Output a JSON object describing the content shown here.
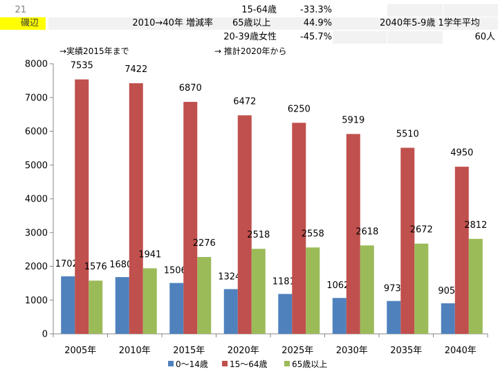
{
  "header": {
    "row_number": "21",
    "area_name": "磯辺",
    "change_label": "2010→40年 増減率",
    "rows": [
      {
        "group": "15-64歳",
        "rate": "-33.3%"
      },
      {
        "group": "65歳以上",
        "rate": "44.9%"
      },
      {
        "group": "20-39歳女性",
        "rate": "-45.7%"
      }
    ],
    "grade_label": "2040年5-9歳 1学年平均",
    "grade_value": "60人"
  },
  "notes": {
    "actual": "→実績2015年まで",
    "estimate": "→ 推計2020年から"
  },
  "colors": {
    "series_0": "#4f81bd",
    "series_1": "#c0504d",
    "series_2": "#9bbb59"
  },
  "chart_data": {
    "type": "bar",
    "categories": [
      "2005年",
      "2010年",
      "2015年",
      "2020年",
      "2025年",
      "2030年",
      "2035年",
      "2040年"
    ],
    "series": [
      {
        "name": "0～14歳",
        "values": [
          1702,
          1680,
          1506,
          1324,
          1181,
          1062,
          973,
          905
        ]
      },
      {
        "name": "15～64歳",
        "values": [
          7535,
          7422,
          6870,
          6472,
          6250,
          5919,
          5510,
          4950
        ]
      },
      {
        "name": "65歳以上",
        "values": [
          1576,
          1941,
          2276,
          2518,
          2558,
          2618,
          2672,
          2812
        ]
      }
    ],
    "ylim": [
      0,
      8000
    ],
    "yticks": [
      0,
      1000,
      2000,
      3000,
      4000,
      5000,
      6000,
      7000,
      8000
    ],
    "grid": false,
    "legend": "bottom"
  }
}
